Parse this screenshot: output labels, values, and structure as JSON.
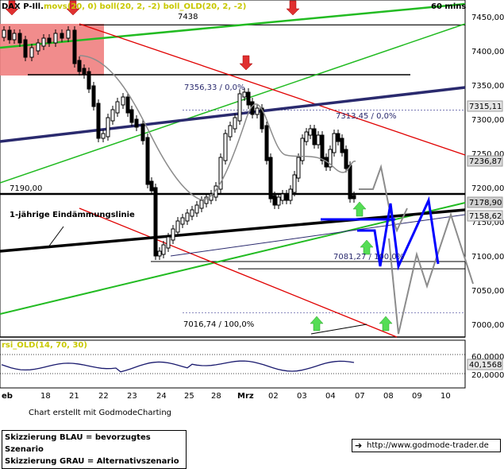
{
  "header": {
    "symbol": "DAX P-Ill.",
    "indicators": "movs(20, 0) boll(20, 2, -2) boll_OLD(20, 2, -2)",
    "timeframe": "60 mins"
  },
  "price_axis": {
    "ticks": [
      "7450,00",
      "7400,00",
      "7350,00",
      "7300,00",
      "7250,00",
      "7200,00",
      "7150,00",
      "7100,00",
      "7050,00",
      "7000,00"
    ],
    "marked_values": [
      "7315,11",
      "7236,87",
      "7178,90",
      "7158,62"
    ]
  },
  "rsi_axis": {
    "ticks": [
      "60,0000",
      "20,0000"
    ],
    "marked_value": "40,1568"
  },
  "date_axis": {
    "labels": [
      "eb",
      "18",
      "21",
      "22",
      "23",
      "24",
      "25",
      "28",
      "Mrz",
      "02",
      "03",
      "04",
      "07",
      "08",
      "09",
      "10"
    ]
  },
  "annotations": {
    "level_7438": "7438",
    "level_7190": "7190,00",
    "line_label": "1-jährige Eindämmungslinie",
    "fib_7356": "7356,33 / 0,0%",
    "fib_7313": "7313,45 / 0,0%",
    "fib_7081": "7081,27 / 100,0%",
    "fib_7016": "7016,74 / 100,0%"
  },
  "rsi_title": "rsi_OLD(14, 70, 30)",
  "footer": {
    "credit": "Chart erstellt mit GodmodeCharting",
    "legend_blue": "Skizzierung BLAU = bevorzugtes Szenario",
    "legend_grey": "Skizzierung GRAU = Alternativszenario",
    "url": "http://www.godmode-trader.de"
  },
  "colors": {
    "candles": "#000000",
    "moving_average": "#8c8c8c",
    "upper_trend": "#e00000",
    "green_channel": "#22bb22",
    "navy_trend": "#2a2a6e",
    "blue_scenario": "#0000ff",
    "grey_scenario": "#8c8c8c",
    "zone": "#ef8080"
  },
  "chart_data": {
    "type": "candlestick",
    "interval": "60 mins",
    "y_range": [
      6990,
      7460
    ],
    "reference_levels": [
      7438,
      7356.33,
      7313.45,
      7190,
      7081.27,
      7016.74
    ],
    "price_markers": [
      7315.11,
      7236.87,
      7178.9,
      7158.62
    ],
    "rsi": {
      "name": "rsi_OLD(14, 70, 30)",
      "range": [
        0,
        100
      ],
      "levels": [
        60,
        20
      ],
      "last": 40.1568
    }
  }
}
